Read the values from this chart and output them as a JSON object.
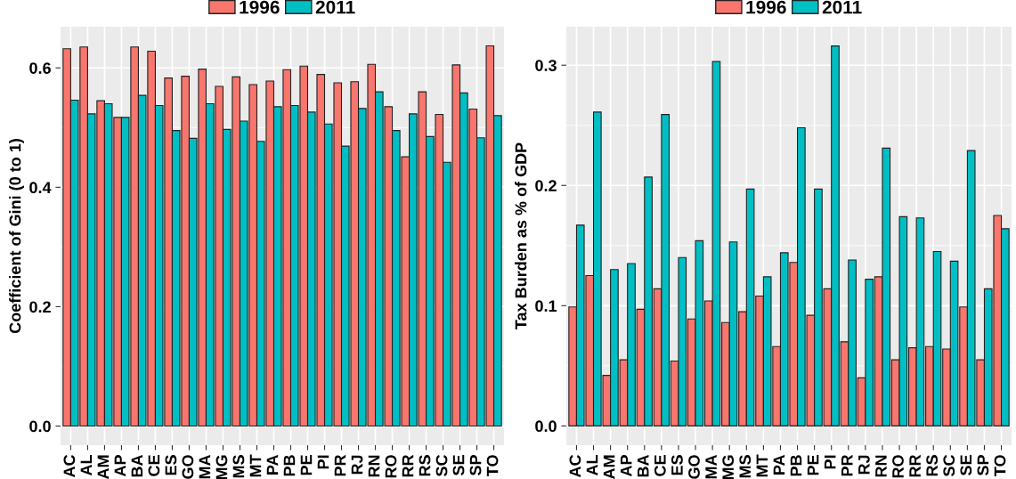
{
  "chart_data": [
    {
      "type": "bar",
      "ylabel": "Coefficient of Gini (0 to 1)",
      "legend": "top",
      "grid": true,
      "categories": [
        "AC",
        "AL",
        "AM",
        "AP",
        "BA",
        "CE",
        "ES",
        "GO",
        "MA",
        "MG",
        "MS",
        "MT",
        "PA",
        "PB",
        "PE",
        "PI",
        "PR",
        "RJ",
        "RN",
        "RO",
        "RR",
        "RS",
        "SC",
        "SE",
        "SP",
        "TO"
      ],
      "ylim": [
        -0.032,
        0.669
      ],
      "yticks": [
        {
          "value": 0,
          "label": "0.0"
        },
        {
          "value": 0.2,
          "label": "0.2"
        },
        {
          "value": 0.4,
          "label": "0.4"
        },
        {
          "value": 0.6,
          "label": "0.6"
        }
      ],
      "series": [
        {
          "name": "1996",
          "color": "#f8766d",
          "values": [
            0.632,
            0.635,
            0.545,
            0.517,
            0.635,
            0.628,
            0.583,
            0.586,
            0.598,
            0.569,
            0.585,
            0.572,
            0.578,
            0.597,
            0.603,
            0.589,
            0.575,
            0.577,
            0.606,
            0.535,
            0.451,
            0.56,
            0.522,
            0.605,
            0.531,
            0.637
          ]
        },
        {
          "name": "2011",
          "color": "#00bfc4",
          "values": [
            0.546,
            0.523,
            0.54,
            0.517,
            0.554,
            0.537,
            0.495,
            0.482,
            0.54,
            0.497,
            0.511,
            0.477,
            0.535,
            0.537,
            0.526,
            0.506,
            0.469,
            0.532,
            0.56,
            0.495,
            0.523,
            0.485,
            0.442,
            0.558,
            0.483,
            0.52
          ]
        }
      ]
    },
    {
      "type": "bar",
      "ylabel": "Tax Burden as % of GDP",
      "legend": "top",
      "grid": true,
      "categories": [
        "AC",
        "AL",
        "AM",
        "AP",
        "BA",
        "CE",
        "ES",
        "GO",
        "MA",
        "MG",
        "MS",
        "MT",
        "PA",
        "PB",
        "PE",
        "PI",
        "PR",
        "RJ",
        "RN",
        "RO",
        "RR",
        "RS",
        "SC",
        "SE",
        "SP",
        "TO"
      ],
      "ylim": [
        -0.016,
        0.332
      ],
      "yticks": [
        {
          "value": 0,
          "label": "0.0"
        },
        {
          "value": 0.1,
          "label": "0.1"
        },
        {
          "value": 0.2,
          "label": "0.2"
        },
        {
          "value": 0.3,
          "label": "0.3"
        }
      ],
      "series": [
        {
          "name": "1996",
          "color": "#f8766d",
          "values": [
            0.099,
            0.125,
            0.042,
            0.055,
            0.097,
            0.114,
            0.054,
            0.089,
            0.104,
            0.086,
            0.095,
            0.108,
            0.066,
            0.136,
            0.092,
            0.114,
            0.07,
            0.04,
            0.124,
            0.055,
            0.065,
            0.066,
            0.064,
            0.099,
            0.055,
            0.175
          ]
        },
        {
          "name": "2011",
          "color": "#00bfc4",
          "values": [
            0.167,
            0.261,
            0.13,
            0.135,
            0.207,
            0.259,
            0.14,
            0.154,
            0.303,
            0.153,
            0.197,
            0.124,
            0.144,
            0.248,
            0.197,
            0.316,
            0.138,
            0.122,
            0.231,
            0.174,
            0.173,
            0.145,
            0.137,
            0.229,
            0.114,
            0.164
          ]
        }
      ]
    }
  ]
}
